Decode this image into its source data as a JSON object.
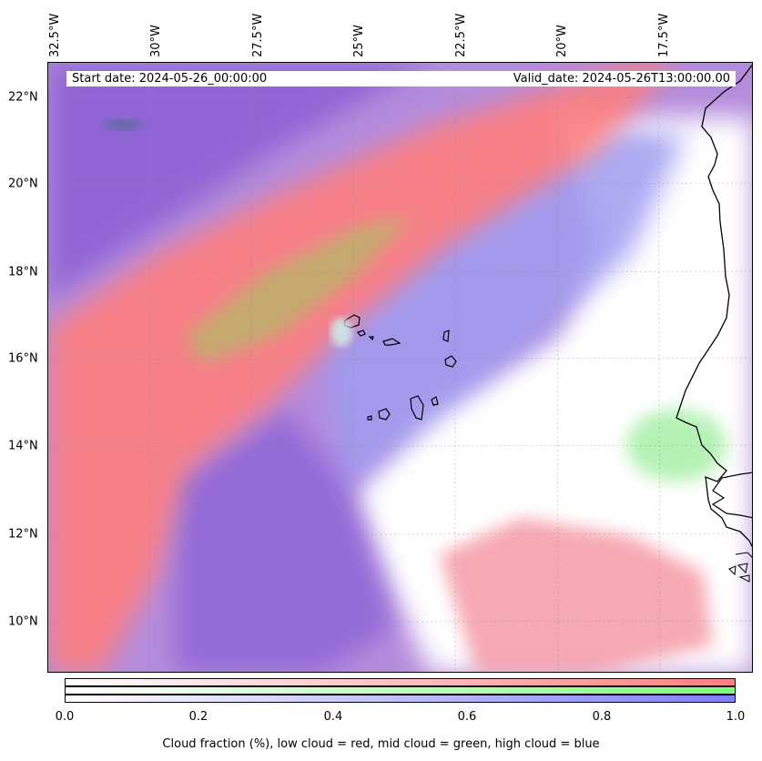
{
  "map": {
    "start_date_text": "Start date: 2024-05-26_00:00:00",
    "valid_date_text": "Valid_date: 2024-05-26T13:00:00.00",
    "lon_labels": [
      "32.5°W",
      "30°W",
      "27.5°W",
      "25°W",
      "22.5°W",
      "20°W",
      "17.5°W"
    ],
    "lat_labels": [
      "22°N",
      "20°N",
      "18°N",
      "16°N",
      "14°N",
      "12°N",
      "10°N"
    ],
    "layers": {
      "low_cloud_color": "#ff7f7f",
      "mid_cloud_color": "#7fff7f",
      "high_cloud_color": "#7f7fff"
    }
  },
  "colorbar": {
    "label": "Cloud fraction (%), low cloud = red, mid cloud = green, high cloud = blue",
    "ticks": [
      "0.0",
      "0.2",
      "0.4",
      "0.6",
      "0.8",
      "1.0"
    ],
    "range": [
      0.0,
      1.0
    ]
  }
}
